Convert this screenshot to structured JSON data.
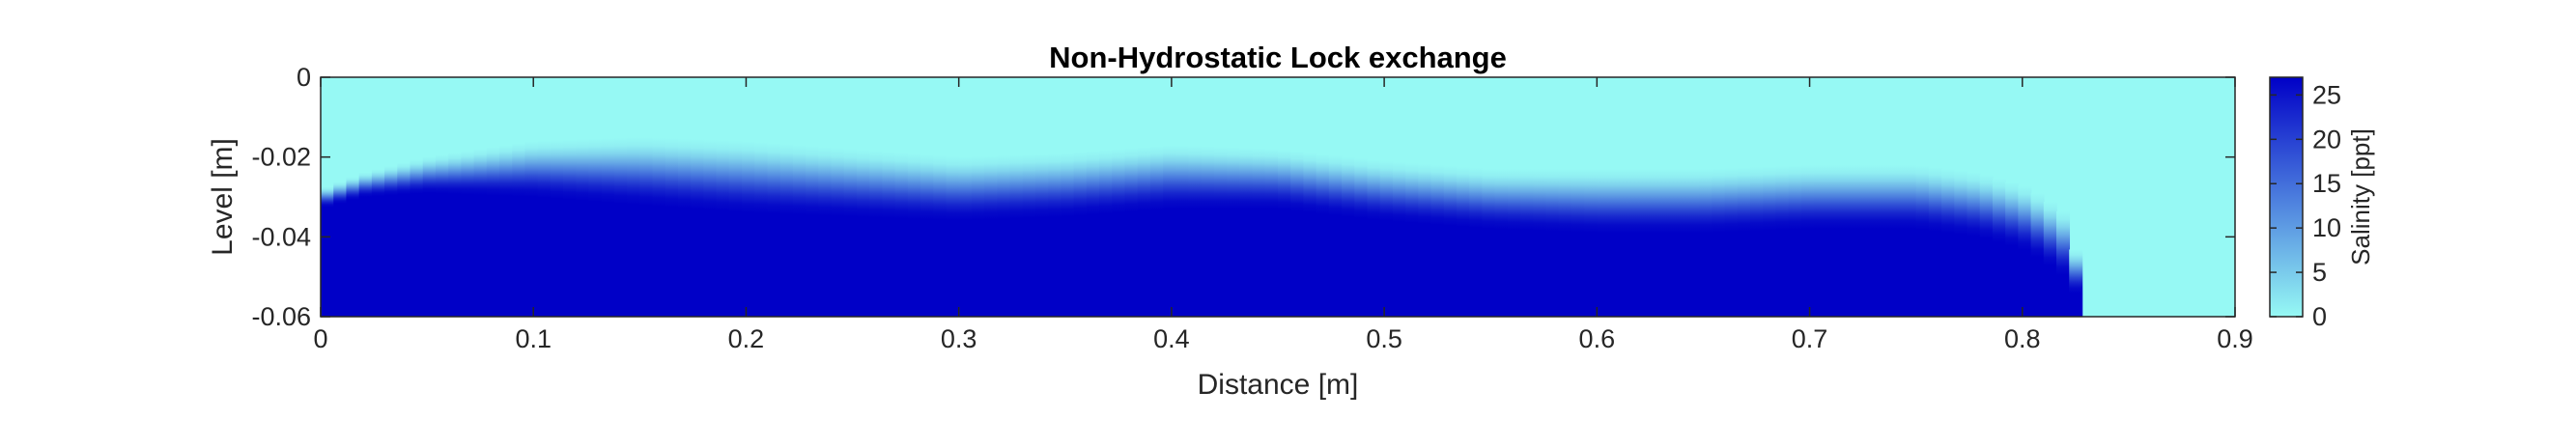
{
  "chart_data": {
    "type": "heatmap",
    "title": "Non-Hydrostatic Lock exchange",
    "xlabel": "Distance [m]",
    "ylabel": "Level [m]",
    "xlim": [
      0,
      0.9
    ],
    "ylim": [
      -0.06,
      0
    ],
    "xticks": [
      "0",
      "0.1",
      "0.2",
      "0.3",
      "0.4",
      "0.5",
      "0.6",
      "0.7",
      "0.8",
      "0.9"
    ],
    "yticks": [
      "0",
      "-0.02",
      "-0.04",
      "-0.06"
    ],
    "colorbar": {
      "label": "Salinity [ppt]",
      "ticks": [
        "0",
        "5",
        "10",
        "15",
        "20",
        "25"
      ],
      "range": [
        0,
        27
      ],
      "color_low": "#96F9F4",
      "color_high": "#0000C7"
    },
    "field": {
      "variable": "salinity",
      "units": "ppt",
      "ambient_value": 0,
      "dense_value": 27,
      "front_position_x": 0.82,
      "front_head_level": -0.027,
      "interface": {
        "x": [
          0.0,
          0.02,
          0.05,
          0.1,
          0.15,
          0.2,
          0.25,
          0.3,
          0.35,
          0.4,
          0.45,
          0.5,
          0.55,
          0.6,
          0.65,
          0.7,
          0.75,
          0.78,
          0.8,
          0.81,
          0.82,
          0.826,
          0.83
        ],
        "upper": [
          -0.028,
          -0.024,
          -0.02,
          -0.016,
          -0.015,
          -0.016,
          -0.018,
          -0.02,
          -0.019,
          -0.017,
          -0.018,
          -0.021,
          -0.023,
          -0.023,
          -0.023,
          -0.022,
          -0.022,
          -0.024,
          -0.027,
          -0.03,
          -0.034,
          -0.045,
          -0.06
        ],
        "lower": [
          -0.033,
          -0.03,
          -0.029,
          -0.03,
          -0.032,
          -0.034,
          -0.035,
          -0.036,
          -0.035,
          -0.033,
          -0.033,
          -0.036,
          -0.038,
          -0.039,
          -0.039,
          -0.038,
          -0.038,
          -0.04,
          -0.043,
          -0.046,
          -0.05,
          -0.055,
          -0.06
        ]
      }
    },
    "grid": false
  }
}
